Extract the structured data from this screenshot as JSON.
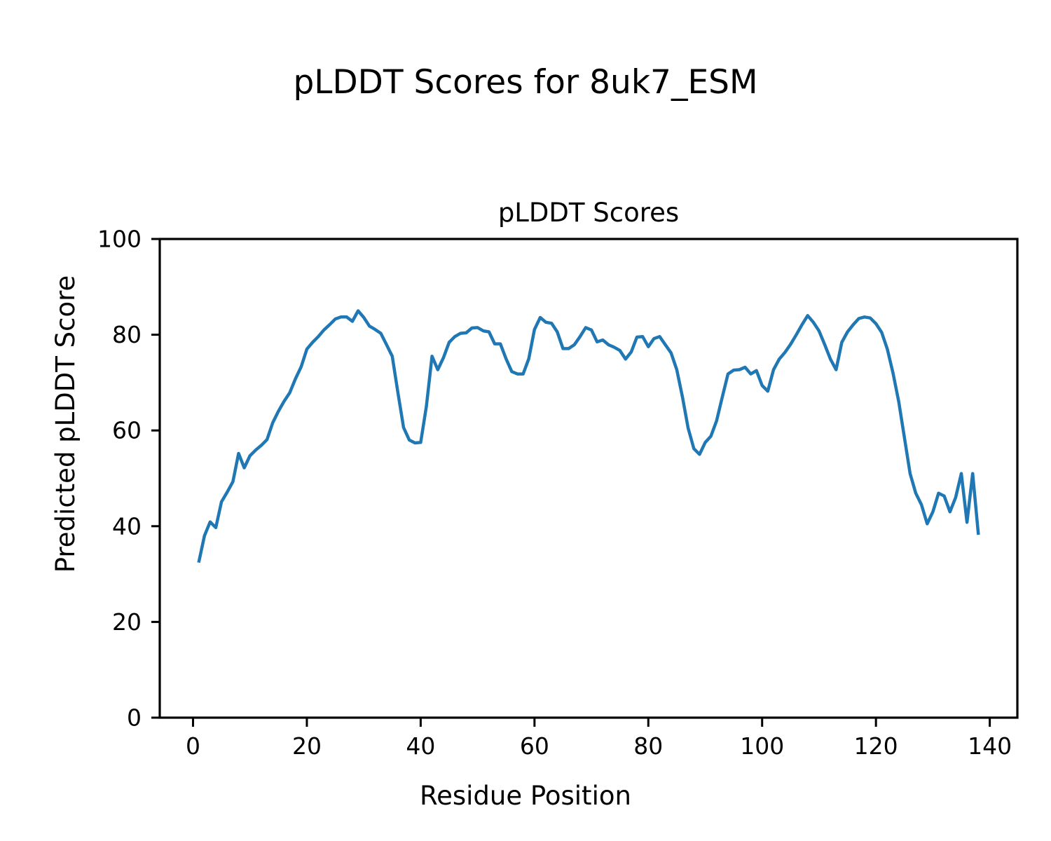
{
  "figure": {
    "suptitle": "pLDDT Scores for 8uk7_ESM",
    "axes_title": "pLDDT Scores",
    "xlabel": "Residue Position",
    "ylabel": "Predicted pLDDT Score",
    "background_color": "#ffffff",
    "text_color": "#000000",
    "spine_color": "#000000"
  },
  "chart_data": {
    "type": "line",
    "title": "pLDDT Scores",
    "xlabel": "Residue Position",
    "ylabel": "Predicted pLDDT Score",
    "legend": "none",
    "grid": false,
    "line_color": "#1f77b4",
    "line_width": 4.5,
    "xlim": [
      -5.85,
      144.85
    ],
    "ylim": [
      0,
      100
    ],
    "x_ticks": [
      0,
      20,
      40,
      60,
      80,
      100,
      120,
      140
    ],
    "y_ticks": [
      0,
      20,
      40,
      60,
      80,
      100
    ],
    "x_start": 1,
    "x_step": 1,
    "n_points": 138,
    "values": [
      32.4,
      38.0,
      40.9,
      39.7,
      45.1,
      47.1,
      49.3,
      55.2,
      52.2,
      54.7,
      55.9,
      56.9,
      58.1,
      61.6,
      64.0,
      66.1,
      67.9,
      70.8,
      73.3,
      77.0,
      78.4,
      79.6,
      81.0,
      82.1,
      83.3,
      83.7,
      83.7,
      82.8,
      85.0,
      83.6,
      81.8,
      81.1,
      80.3,
      77.9,
      75.5,
      67.9,
      60.6,
      58.0,
      57.4,
      57.5,
      65.0,
      75.5,
      72.7,
      75.2,
      78.4,
      79.6,
      80.3,
      80.4,
      81.4,
      81.5,
      80.8,
      80.6,
      78.1,
      78.1,
      75.0,
      72.3,
      71.8,
      71.8,
      75.0,
      81.1,
      83.6,
      82.6,
      82.4,
      80.6,
      77.1,
      77.1,
      77.9,
      79.6,
      81.5,
      81.0,
      78.5,
      78.9,
      77.9,
      77.4,
      76.7,
      74.9,
      76.4,
      79.5,
      79.6,
      77.5,
      79.2,
      79.6,
      77.9,
      76.2,
      72.7,
      67.0,
      60.5,
      56.2,
      55.0,
      57.5,
      58.8,
      62.0,
      67.0,
      71.8,
      72.6,
      72.7,
      73.2,
      71.8,
      72.5,
      69.4,
      68.2,
      72.7,
      74.9,
      76.3,
      78.0,
      80.0,
      82.1,
      84.0,
      82.6,
      80.8,
      77.9,
      74.9,
      72.7,
      78.4,
      80.6,
      82.1,
      83.4,
      83.7,
      83.5,
      82.3,
      80.5,
      77.0,
      72.0,
      66.0,
      58.5,
      51.0,
      46.9,
      44.5,
      40.5,
      43.0,
      46.9,
      46.3,
      43.0,
      46.0,
      51.0,
      40.8,
      51.0,
      38.2
    ]
  }
}
